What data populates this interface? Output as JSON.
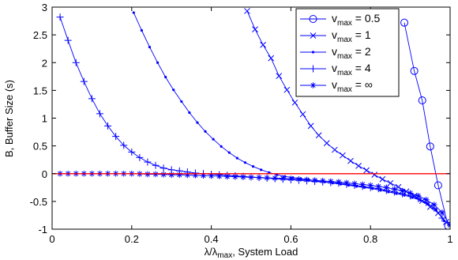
{
  "chart_data": {
    "type": "line",
    "title": "",
    "xlabel": "λ/λmax, System Load",
    "xlabel_parts": {
      "pre": "λ/λ",
      "sub": "max",
      "post": ", System Load"
    },
    "ylabel": "B, Buffer Size (s)",
    "xlim": [
      0,
      1
    ],
    "ylim": [
      -1,
      3
    ],
    "xticks": [
      0,
      0.2,
      0.4,
      0.6,
      0.8,
      1
    ],
    "xtick_labels": [
      "0",
      "0.2",
      "0.4",
      "0.6",
      "0.8",
      "1"
    ],
    "yticks": [
      -1,
      -0.5,
      0,
      0.5,
      1,
      1.5,
      2,
      2.5,
      3
    ],
    "ytick_labels": [
      "-1",
      "-0.5",
      "0",
      "0.5",
      "1",
      "1.5",
      "2",
      "2.5",
      "3"
    ],
    "grid": false,
    "legend_position": "top-right",
    "series": [
      {
        "name": "vmax = 0.5",
        "legend": {
          "pre": "v",
          "sub": "max",
          "post": " = 0.5"
        },
        "marker": "circle",
        "color": "#0000ff",
        "x": [
          0.885,
          0.91,
          0.93,
          0.95,
          0.97,
          0.995
        ],
        "y": [
          2.72,
          1.85,
          1.32,
          0.49,
          -0.21,
          -0.94
        ]
      },
      {
        "name": "vmax = 1",
        "legend": {
          "pre": "v",
          "sub": "max",
          "post": " = 1"
        },
        "marker": "x",
        "color": "#0000ff",
        "x": [
          0.49,
          0.51,
          0.53,
          0.55,
          0.57,
          0.59,
          0.61,
          0.63,
          0.65,
          0.67,
          0.69,
          0.71,
          0.73,
          0.75,
          0.77,
          0.79,
          0.81,
          0.83,
          0.85,
          0.87,
          0.89,
          0.91,
          0.93,
          0.95,
          0.97,
          0.99
        ],
        "y": [
          2.93,
          2.6,
          2.32,
          2.08,
          1.76,
          1.51,
          1.28,
          1.07,
          0.86,
          0.69,
          0.55,
          0.43,
          0.33,
          0.23,
          0.14,
          0.06,
          -0.02,
          -0.1,
          -0.17,
          -0.24,
          -0.32,
          -0.4,
          -0.49,
          -0.6,
          -0.71,
          -0.87
        ]
      },
      {
        "name": "vmax = 2",
        "legend": {
          "pre": "v",
          "sub": "max",
          "post": " = 2"
        },
        "marker": "dot",
        "color": "#0000ff",
        "x": [
          0.205,
          0.225,
          0.245,
          0.265,
          0.285,
          0.305,
          0.325,
          0.345,
          0.365,
          0.385,
          0.405,
          0.425,
          0.445,
          0.465,
          0.485,
          0.505,
          0.525,
          0.545,
          0.565,
          0.585,
          0.605,
          0.625,
          0.645,
          0.665,
          0.685,
          0.705,
          0.725,
          0.745,
          0.765,
          0.785,
          0.805,
          0.825,
          0.845,
          0.865,
          0.885,
          0.905,
          0.925,
          0.945,
          0.965,
          0.985
        ],
        "y": [
          2.9,
          2.58,
          2.28,
          2.0,
          1.74,
          1.51,
          1.3,
          1.1,
          0.92,
          0.76,
          0.62,
          0.49,
          0.38,
          0.28,
          0.2,
          0.13,
          0.07,
          0.02,
          -0.02,
          -0.05,
          -0.07,
          -0.09,
          -0.11,
          -0.13,
          -0.15,
          -0.17,
          -0.19,
          -0.21,
          -0.23,
          -0.25,
          -0.27,
          -0.3,
          -0.33,
          -0.36,
          -0.39,
          -0.43,
          -0.48,
          -0.55,
          -0.65,
          -0.85
        ]
      },
      {
        "name": "vmax = 4",
        "legend": {
          "pre": "v",
          "sub": "max",
          "post": " = 4"
        },
        "marker": "plus",
        "color": "#0000ff",
        "x": [
          0.02,
          0.04,
          0.06,
          0.08,
          0.1,
          0.12,
          0.14,
          0.16,
          0.18,
          0.2,
          0.22,
          0.24,
          0.26,
          0.28,
          0.3,
          0.32,
          0.34,
          0.36,
          0.38,
          0.4,
          0.42,
          0.44,
          0.46,
          0.48,
          0.5,
          0.52,
          0.54,
          0.56,
          0.58,
          0.6,
          0.62,
          0.64,
          0.66,
          0.68,
          0.7,
          0.72,
          0.74,
          0.76,
          0.78,
          0.8,
          0.82,
          0.84,
          0.86,
          0.88,
          0.9,
          0.92,
          0.94,
          0.96,
          0.98
        ],
        "y": [
          2.82,
          2.4,
          2.0,
          1.66,
          1.35,
          1.08,
          0.86,
          0.67,
          0.51,
          0.39,
          0.29,
          0.21,
          0.15,
          0.1,
          0.07,
          0.05,
          0.03,
          0.01,
          0.0,
          -0.01,
          -0.02,
          -0.03,
          -0.04,
          -0.05,
          -0.06,
          -0.07,
          -0.08,
          -0.09,
          -0.1,
          -0.11,
          -0.12,
          -0.13,
          -0.14,
          -0.15,
          -0.16,
          -0.17,
          -0.19,
          -0.21,
          -0.23,
          -0.25,
          -0.27,
          -0.3,
          -0.33,
          -0.36,
          -0.4,
          -0.45,
          -0.52,
          -0.62,
          -0.8
        ]
      },
      {
        "name": "vmax = ∞",
        "legend": {
          "pre": "v",
          "sub": "max",
          "post": " = ∞"
        },
        "marker": "star",
        "color": "#0000ff",
        "x": [
          0.02,
          0.04,
          0.06,
          0.08,
          0.1,
          0.12,
          0.14,
          0.16,
          0.18,
          0.2,
          0.22,
          0.24,
          0.26,
          0.28,
          0.3,
          0.32,
          0.34,
          0.36,
          0.38,
          0.4,
          0.42,
          0.44,
          0.46,
          0.48,
          0.5,
          0.52,
          0.54,
          0.56,
          0.58,
          0.6,
          0.62,
          0.64,
          0.66,
          0.68,
          0.7,
          0.72,
          0.74,
          0.76,
          0.78,
          0.8,
          0.82,
          0.84,
          0.86,
          0.88,
          0.9,
          0.92,
          0.94,
          0.96,
          0.98,
          1.0
        ],
        "y": [
          0.0,
          0.0,
          0.0,
          0.0,
          0.0,
          0.0,
          0.0,
          0.0,
          0.0,
          0.0,
          -0.005,
          -0.01,
          -0.01,
          -0.015,
          -0.02,
          -0.02,
          -0.025,
          -0.03,
          -0.035,
          -0.04,
          -0.045,
          -0.05,
          -0.055,
          -0.06,
          -0.065,
          -0.07,
          -0.075,
          -0.08,
          -0.085,
          -0.09,
          -0.1,
          -0.11,
          -0.12,
          -0.13,
          -0.14,
          -0.15,
          -0.165,
          -0.18,
          -0.195,
          -0.21,
          -0.23,
          -0.25,
          -0.28,
          -0.31,
          -0.35,
          -0.4,
          -0.47,
          -0.56,
          -0.7,
          -0.93
        ]
      },
      {
        "name": "",
        "marker": "none",
        "color": "#ff0000",
        "x": [
          0,
          1
        ],
        "y": [
          0,
          0
        ]
      }
    ]
  }
}
